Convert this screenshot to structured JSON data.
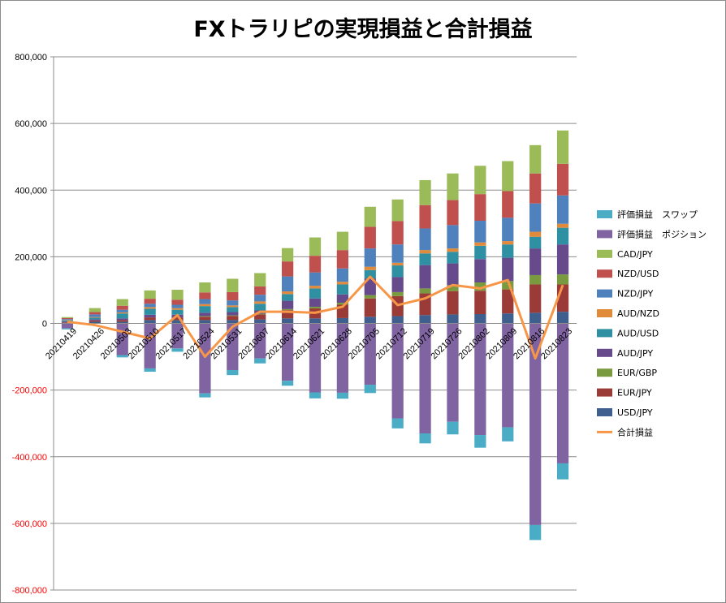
{
  "chart_data": {
    "type": "bar",
    "stacked": true,
    "title": "FXトラリピの実現損益と合計損益",
    "xlabel": "",
    "ylabel": "",
    "ylim": [
      -800000,
      800000
    ],
    "y_ticks": [
      "800,000",
      "600,000",
      "400,000",
      "200,000",
      "0",
      "-200,000",
      "-400,000",
      "-600,000",
      "-800,000"
    ],
    "y_tick_values": [
      800000,
      600000,
      400000,
      200000,
      0,
      -200000,
      -400000,
      -600000,
      -800000
    ],
    "negative_tick_color": "#ff0000",
    "grid": true,
    "legend_position": "right",
    "categories": [
      "20210419",
      "20210426",
      "20210503",
      "20210510",
      "20210517",
      "20210524",
      "20210531",
      "20210607",
      "20210614",
      "20210621",
      "20210628",
      "20210705",
      "20210712",
      "20210719",
      "20210726",
      "20210802",
      "20210809",
      "20210816",
      "20210823"
    ],
    "x_tick_labels": [
      "20210419",
      "20210426",
      "20210503",
      "20210510",
      "20210517",
      "20210524",
      "20210531",
      "20210607",
      "20210614",
      "20210621",
      "20210628",
      "20210705",
      "20210712",
      "20210719",
      "20210726",
      "20210802",
      "20210809",
      "20210816",
      "20210823"
    ],
    "positive_series": [
      {
        "name": "USD/JPY",
        "color": "#3f5f8f",
        "values": [
          2000,
          5000,
          5000,
          10000,
          10000,
          10000,
          10000,
          12000,
          15000,
          15000,
          16000,
          20000,
          22000,
          25000,
          27000,
          28000,
          30000,
          32000,
          35000
        ]
      },
      {
        "name": "EUR/JPY",
        "color": "#9b3b38",
        "values": [
          2000,
          4000,
          5000,
          8000,
          8000,
          10000,
          12000,
          15000,
          25000,
          30000,
          40000,
          55000,
          60000,
          65000,
          70000,
          70000,
          72000,
          85000,
          82000
        ]
      },
      {
        "name": "EUR/GBP",
        "color": "#7a9a3f",
        "values": [
          0,
          0,
          0,
          0,
          0,
          2000,
          2000,
          2000,
          3000,
          5000,
          6000,
          10000,
          12000,
          15000,
          18000,
          25000,
          25000,
          28000,
          30000
        ]
      },
      {
        "name": "AUD/JPY",
        "color": "#664a8c",
        "values": [
          2000,
          3000,
          5000,
          8000,
          8000,
          10000,
          10000,
          10000,
          25000,
          25000,
          25000,
          50000,
          45000,
          70000,
          65000,
          70000,
          70000,
          80000,
          90000
        ]
      },
      {
        "name": "AUD/USD",
        "color": "#2f8fa3",
        "values": [
          3000,
          5000,
          15000,
          18000,
          15000,
          20000,
          15000,
          20000,
          20000,
          30000,
          30000,
          25000,
          35000,
          35000,
          35000,
          40000,
          40000,
          35000,
          50000
        ]
      },
      {
        "name": "AUD/NZD",
        "color": "#e08a3a",
        "values": [
          1000,
          2000,
          3000,
          5000,
          5000,
          6000,
          5000,
          7000,
          8000,
          8000,
          8000,
          10000,
          8000,
          10000,
          10000,
          10000,
          10000,
          15000,
          12000
        ]
      },
      {
        "name": "NZD/JPY",
        "color": "#4f81bd",
        "values": [
          3000,
          8000,
          8000,
          10000,
          10000,
          15000,
          15000,
          20000,
          45000,
          40000,
          40000,
          55000,
          55000,
          65000,
          70000,
          65000,
          70000,
          85000,
          85000
        ]
      },
      {
        "name": "NZD/USD",
        "color": "#c0504d",
        "values": [
          3000,
          7000,
          12000,
          15000,
          15000,
          20000,
          25000,
          25000,
          45000,
          50000,
          55000,
          65000,
          70000,
          70000,
          75000,
          80000,
          80000,
          90000,
          95000
        ]
      },
      {
        "name": "CAD/JPY",
        "color": "#9bbb59",
        "values": [
          3000,
          12000,
          20000,
          25000,
          30000,
          30000,
          40000,
          40000,
          40000,
          55000,
          55000,
          60000,
          65000,
          75000,
          80000,
          85000,
          90000,
          85000,
          100000
        ]
      }
    ],
    "negative_series": [
      {
        "name": "評価損益　ポジション",
        "color": "#8064a2",
        "values": [
          -15000,
          0,
          -95000,
          -135000,
          -75000,
          -210000,
          -140000,
          -105000,
          -172000,
          -207000,
          -208000,
          -184000,
          -285000,
          -330000,
          -295000,
          -335000,
          -312000,
          -605000,
          -420000
        ]
      },
      {
        "name": "評価損益　スワップ",
        "color": "#4bacc6",
        "values": [
          -3000,
          0,
          -7000,
          -10000,
          -10000,
          -12000,
          -15000,
          -15000,
          -15000,
          -18000,
          -18000,
          -25000,
          -30000,
          -30000,
          -38000,
          -38000,
          -42000,
          -45000,
          -48000
        ]
      }
    ],
    "line_series": {
      "name": "合計損益",
      "color": "#f79646",
      "values": [
        5000,
        -5000,
        -25000,
        -45000,
        25000,
        -100000,
        -10000,
        35000,
        35000,
        32000,
        50000,
        140000,
        55000,
        75000,
        115000,
        105000,
        130000,
        -105000,
        115000
      ]
    },
    "legend": [
      {
        "name": "評価損益　スワップ",
        "color": "#4bacc6",
        "kind": "bar"
      },
      {
        "name": "評価損益　ポジション",
        "color": "#8064a2",
        "kind": "bar"
      },
      {
        "name": "CAD/JPY",
        "color": "#9bbb59",
        "kind": "bar"
      },
      {
        "name": "NZD/USD",
        "color": "#c0504d",
        "kind": "bar"
      },
      {
        "name": "NZD/JPY",
        "color": "#4f81bd",
        "kind": "bar"
      },
      {
        "name": "AUD/NZD",
        "color": "#e08a3a",
        "kind": "bar"
      },
      {
        "name": "AUD/USD",
        "color": "#2f8fa3",
        "kind": "bar"
      },
      {
        "name": "AUD/JPY",
        "color": "#664a8c",
        "kind": "bar"
      },
      {
        "name": "EUR/GBP",
        "color": "#7a9a3f",
        "kind": "bar"
      },
      {
        "name": "EUR/JPY",
        "color": "#9b3b38",
        "kind": "bar"
      },
      {
        "name": "USD/JPY",
        "color": "#3f5f8f",
        "kind": "bar"
      },
      {
        "name": "合計損益",
        "color": "#f79646",
        "kind": "line"
      }
    ]
  }
}
